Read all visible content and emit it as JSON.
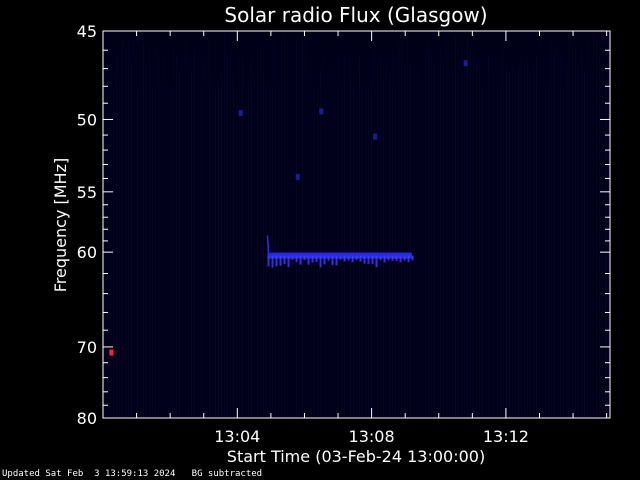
{
  "chart_data": {
    "type": "heatmap",
    "title": "Solar radio Flux (Glasgow)",
    "xlabel": "Start Time (03-Feb-24 13:00:00)",
    "ylabel": "Frequency [MHz]",
    "x_unit": "minutes after 13:00",
    "xlim": [
      0,
      15.1
    ],
    "ylim": [
      80,
      45
    ],
    "y_scale": "reciprocal",
    "x_ticks": [
      {
        "value": 4,
        "label": "13:04"
      },
      {
        "value": 8,
        "label": "13:08"
      },
      {
        "value": 12,
        "label": "13:12"
      }
    ],
    "y_ticks": [
      {
        "value": 45,
        "label": "45"
      },
      {
        "value": 50,
        "label": "50"
      },
      {
        "value": 55,
        "label": "55"
      },
      {
        "value": 60,
        "label": "60"
      },
      {
        "value": 70,
        "label": "70"
      },
      {
        "value": 80,
        "label": "80"
      }
    ],
    "background_color": "#000018",
    "colors": {
      "weak": "#1a1aa0",
      "medium": "#2c2cff",
      "strong": "#ff2040"
    },
    "features": [
      {
        "name": "burst",
        "x_start": 4.9,
        "x_end": 9.2,
        "freq": 60.5,
        "intensity": "medium"
      },
      {
        "name": "spot",
        "x": 0.25,
        "freq": 70.7,
        "intensity": "strong"
      },
      {
        "name": "spot",
        "x": 4.1,
        "freq": 49.6,
        "intensity": "weak"
      },
      {
        "name": "spot",
        "x": 6.5,
        "freq": 49.5,
        "intensity": "weak"
      },
      {
        "name": "spot",
        "x": 8.1,
        "freq": 51.1,
        "intensity": "weak"
      },
      {
        "name": "spot",
        "x": 5.8,
        "freq": 53.9,
        "intensity": "weak"
      },
      {
        "name": "spot",
        "x": 10.8,
        "freq": 46.7,
        "intensity": "weak"
      }
    ]
  },
  "footer": {
    "updated": "Updated Sat Feb  3 13:59:13 2024",
    "note": "BG subtracted"
  }
}
